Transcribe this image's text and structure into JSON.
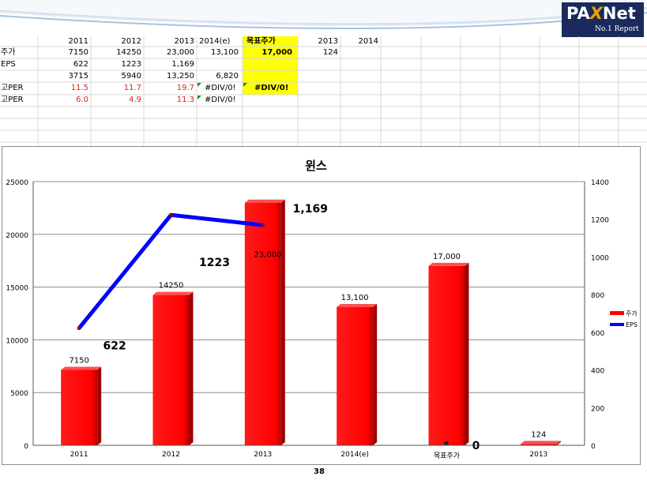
{
  "logo": {
    "brand_pax": "PA",
    "brand_x": "X",
    "brand_net": "Net",
    "tagline": "No.1 Report"
  },
  "sheet": {
    "header": [
      "2011",
      "2012",
      "2013",
      "2014(e)",
      "목표주가",
      "2013",
      "2014"
    ],
    "rows": [
      {
        "label": "주가",
        "cells": [
          "7150",
          "14250",
          "23,000",
          "13,100",
          "17,000",
          "124",
          ""
        ]
      },
      {
        "label": "EPS",
        "cells": [
          "622",
          "1223",
          "1,169",
          "",
          "",
          "",
          ""
        ]
      },
      {
        "label": "",
        "cells": [
          "3715",
          "5940",
          "13,250",
          "6,820",
          "",
          "",
          ""
        ]
      },
      {
        "label": "고PER",
        "cells": [
          "11.5",
          "11.7",
          "19.7",
          "#DIV/0!",
          "#DIV/0!",
          "",
          ""
        ]
      },
      {
        "label": "고PER",
        "cells": [
          "6.0",
          "4.9",
          "11.3",
          "#DIV/0!",
          "",
          "",
          ""
        ]
      }
    ],
    "highlight_color": "#ffff00"
  },
  "chart_data": {
    "type": "bar",
    "title": "윈스",
    "categories": [
      "2011",
      "2012",
      "2013",
      "2014(e)",
      "목표주가",
      "2013"
    ],
    "series": [
      {
        "name": "주가",
        "type": "bar",
        "axis": "left",
        "color": "#ff0000",
        "values": [
          7150,
          14250,
          23000,
          13100,
          17000,
          124
        ],
        "labels": [
          "7150",
          "14250",
          "23,000",
          "13,100",
          "17,000",
          "124"
        ]
      },
      {
        "name": "EPS",
        "type": "line",
        "axis": "right",
        "color": "#0000ff",
        "values": [
          622,
          1223,
          1169,
          null,
          0,
          null
        ],
        "labels": [
          "622",
          "1223",
          "1,169",
          "",
          "0",
          ""
        ]
      }
    ],
    "ylim_left": [
      0,
      25000
    ],
    "yticks_left": [
      "0",
      "5000",
      "10000",
      "15000",
      "20000",
      "25000"
    ],
    "ylim_right": [
      0,
      1400
    ],
    "yticks_right": [
      "0",
      "200",
      "400",
      "600",
      "800",
      "1000",
      "1200",
      "1400"
    ],
    "grid": true,
    "legend_position": "right"
  },
  "page_number": "38"
}
